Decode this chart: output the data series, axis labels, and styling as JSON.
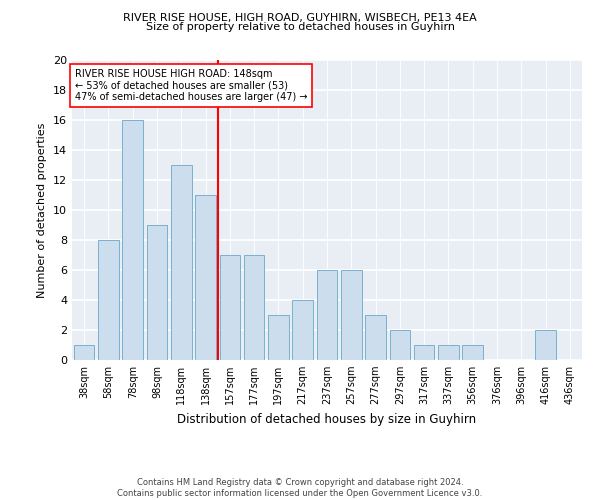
{
  "title1": "RIVER RISE HOUSE, HIGH ROAD, GUYHIRN, WISBECH, PE13 4EA",
  "title2": "Size of property relative to detached houses in Guyhirn",
  "xlabel": "Distribution of detached houses by size in Guyhirn",
  "ylabel": "Number of detached properties",
  "footnote1": "Contains HM Land Registry data © Crown copyright and database right 2024.",
  "footnote2": "Contains public sector information licensed under the Open Government Licence v3.0.",
  "annotation_line1": "RIVER RISE HOUSE HIGH ROAD: 148sqm",
  "annotation_line2": "← 53% of detached houses are smaller (53)",
  "annotation_line3": "47% of semi-detached houses are larger (47) →",
  "bar_labels": [
    "38sqm",
    "58sqm",
    "78sqm",
    "98sqm",
    "118sqm",
    "138sqm",
    "157sqm",
    "177sqm",
    "197sqm",
    "217sqm",
    "237sqm",
    "257sqm",
    "277sqm",
    "297sqm",
    "317sqm",
    "337sqm",
    "356sqm",
    "376sqm",
    "396sqm",
    "416sqm",
    "436sqm"
  ],
  "bar_values": [
    1,
    8,
    16,
    9,
    13,
    11,
    7,
    7,
    3,
    4,
    6,
    6,
    3,
    2,
    1,
    1,
    1,
    0,
    0,
    2,
    0
  ],
  "bar_color": "#ccdded",
  "bar_edge_color": "#7ab0ce",
  "reference_line_x": 5.5,
  "reference_line_color": "red",
  "ylim": [
    0,
    20
  ],
  "yticks": [
    0,
    2,
    4,
    6,
    8,
    10,
    12,
    14,
    16,
    18,
    20
  ],
  "annotation_box_color": "white",
  "annotation_box_edge": "red",
  "bg_color": "#e8eef4"
}
